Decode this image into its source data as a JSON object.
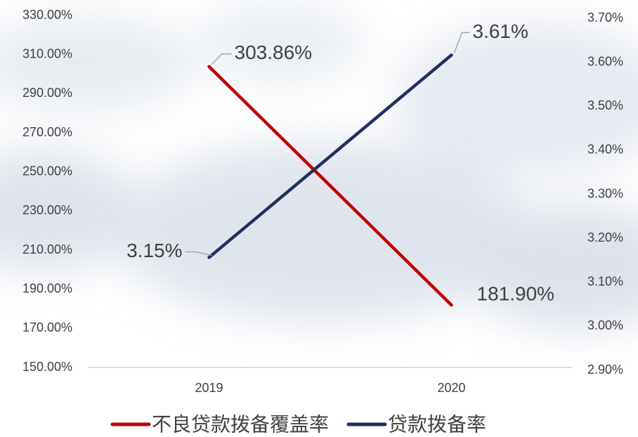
{
  "chart_data": {
    "type": "line",
    "categories": [
      "2019",
      "2020"
    ],
    "series": [
      {
        "name": "不良贷款拨备覆盖率",
        "color": "#c00000",
        "values": [
          303.86,
          181.9
        ],
        "value_labels": [
          "303.86%",
          "181.90%"
        ]
      },
      {
        "name": "贷款拨备率",
        "color": "#1f3060",
        "axis": "y2",
        "values": [
          3.15,
          3.61
        ],
        "value_labels": [
          "3.15%",
          "3.61%"
        ]
      }
    ],
    "ylim": [
      150,
      330
    ],
    "yticks": [
      {
        "value": 150,
        "label": "150.00%"
      },
      {
        "value": 170,
        "label": "170.00%"
      },
      {
        "value": 190,
        "label": "190.00%"
      },
      {
        "value": 210,
        "label": "210.00%"
      },
      {
        "value": 230,
        "label": "230.00%"
      },
      {
        "value": 250,
        "label": "250.00%"
      },
      {
        "value": 270,
        "label": "270.00%"
      },
      {
        "value": 290,
        "label": "290.00%"
      },
      {
        "value": 310,
        "label": "310.00%"
      },
      {
        "value": 330,
        "label": "330.00%"
      }
    ],
    "y2lim": [
      2.9,
      3.7
    ],
    "y2ticks": [
      {
        "value": 2.9,
        "label": "2.90%"
      },
      {
        "value": 3.0,
        "label": "3.00%"
      },
      {
        "value": 3.1,
        "label": "3.10%"
      },
      {
        "value": 3.2,
        "label": "3.20%"
      },
      {
        "value": 3.3,
        "label": "3.30%"
      },
      {
        "value": 3.4,
        "label": "3.40%"
      },
      {
        "value": 3.5,
        "label": "3.50%"
      },
      {
        "value": 3.6,
        "label": "3.60%"
      },
      {
        "value": 3.7,
        "label": "3.70%"
      }
    ],
    "legend": "bottom"
  }
}
